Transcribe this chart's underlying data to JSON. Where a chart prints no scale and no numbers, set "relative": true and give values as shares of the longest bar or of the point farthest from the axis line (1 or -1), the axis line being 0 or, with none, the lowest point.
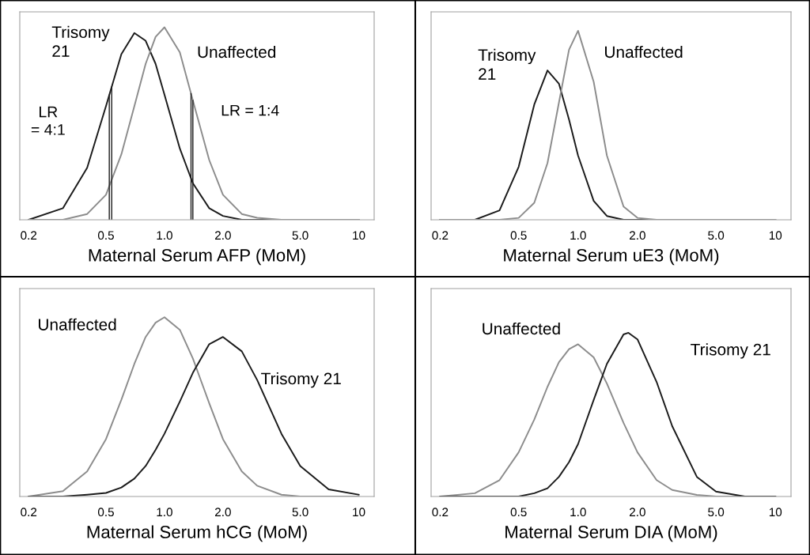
{
  "chart_data": [
    {
      "type": "line",
      "relative": true,
      "xlabel": "Maternal Serum AFP (MoM)",
      "log": "x",
      "xlim": [
        0.18,
        12
      ],
      "xticks": [
        0.2,
        0.5,
        {
          "value": 1,
          "label": "1.0"
        },
        {
          "value": 2,
          "label": "2.0"
        },
        {
          "value": 5,
          "label": "5.0"
        },
        10
      ],
      "tick_labels": "x",
      "grid": false,
      "legend": false,
      "x": [
        0.2,
        0.3,
        0.4,
        0.5,
        0.6,
        0.7,
        0.8,
        0.9,
        1,
        1.2,
        1.4,
        1.7,
        2,
        2.5,
        3,
        4,
        5,
        7,
        10
      ],
      "series": [
        {
          "name": "Trisomy\n21",
          "color": "#1a1a1a",
          "values": [
            0.0,
            0.06,
            0.27,
            0.59,
            0.86,
            0.97,
            0.93,
            0.81,
            0.65,
            0.37,
            0.19,
            0.06,
            0.02,
            0.0,
            0.0,
            0.0,
            0.0,
            0.0,
            0.0
          ]
        },
        {
          "name": "Unaffected",
          "color": "#8c8c8c",
          "values": [
            0.0,
            0.0,
            0.03,
            0.13,
            0.34,
            0.59,
            0.81,
            0.95,
            1.0,
            0.87,
            0.62,
            0.31,
            0.13,
            0.03,
            0.01,
            0.0,
            0.0,
            0.0,
            0.0
          ]
        }
      ],
      "ref_lines": [
        {
          "axis": "x",
          "value": 0.52,
          "color": "#1a1a1a"
        },
        {
          "axis": "x",
          "value": 0.535,
          "color": "#1a1a1a"
        },
        {
          "axis": "x",
          "value": 1.37,
          "color": "#1a1a1a"
        },
        {
          "axis": "x",
          "value": 1.4,
          "color": "#1a1a1a"
        }
      ],
      "annotations": [
        "LR\n= 4:1",
        "LR = 1:4"
      ]
    },
    {
      "type": "line",
      "relative": true,
      "xlabel": "Maternal Serum uE3 (MoM)",
      "log": "x",
      "xlim": [
        0.18,
        12
      ],
      "xticks": [
        0.2,
        0.5,
        {
          "value": 1,
          "label": "1.0"
        },
        {
          "value": 2,
          "label": "2.0"
        },
        {
          "value": 5,
          "label": "5.0"
        },
        10
      ],
      "tick_labels": "x",
      "grid": false,
      "legend": false,
      "x": [
        0.2,
        0.3,
        0.4,
        0.5,
        0.6,
        0.7,
        0.8,
        0.9,
        1,
        1.2,
        1.4,
        1.7,
        2,
        2.5,
        3,
        4,
        5,
        7,
        10
      ],
      "series": [
        {
          "name": "Trisomy\n21",
          "color": "#1a1a1a",
          "values": [
            0.0,
            0.0,
            0.05,
            0.28,
            0.61,
            0.79,
            0.72,
            0.53,
            0.34,
            0.1,
            0.02,
            0.0,
            0.0,
            0.0,
            0.0,
            0.0,
            0.0,
            0.0,
            0.0
          ]
        },
        {
          "name": "Unaffected",
          "color": "#8c8c8c",
          "values": [
            0.0,
            0.0,
            0.0,
            0.01,
            0.09,
            0.3,
            0.62,
            0.9,
            1.0,
            0.73,
            0.34,
            0.07,
            0.01,
            0.0,
            0.0,
            0.0,
            0.0,
            0.0,
            0.0
          ]
        }
      ]
    },
    {
      "type": "line",
      "relative": true,
      "xlabel": "Maternal Serum hCG (MoM)",
      "log": "x",
      "xlim": [
        0.18,
        12
      ],
      "xticks": [
        0.2,
        0.5,
        {
          "value": 1,
          "label": "1.0"
        },
        {
          "value": 2,
          "label": "2.0"
        },
        {
          "value": 5,
          "label": "5.0"
        },
        10
      ],
      "tick_labels": "x",
      "grid": false,
      "legend": false,
      "x": [
        0.2,
        0.3,
        0.4,
        0.5,
        0.6,
        0.7,
        0.8,
        0.9,
        1,
        1.2,
        1.4,
        1.7,
        2,
        2.5,
        3,
        4,
        5,
        7,
        10
      ],
      "series": [
        {
          "name": "Unaffected",
          "color": "#8c8c8c",
          "values": [
            0.0,
            0.03,
            0.14,
            0.32,
            0.54,
            0.74,
            0.89,
            0.97,
            1.0,
            0.93,
            0.77,
            0.52,
            0.32,
            0.14,
            0.06,
            0.01,
            0.0,
            0.0,
            0.0
          ]
        },
        {
          "name": "Trisomy 21",
          "color": "#1a1a1a",
          "values": [
            0.0,
            0.0,
            0.01,
            0.02,
            0.05,
            0.1,
            0.17,
            0.26,
            0.35,
            0.53,
            0.69,
            0.85,
            0.89,
            0.81,
            0.65,
            0.35,
            0.17,
            0.04,
            0.01
          ]
        }
      ]
    },
    {
      "type": "line",
      "relative": true,
      "xlabel": "Maternal Serum DIA (MoM)",
      "log": "x",
      "xlim": [
        0.18,
        12
      ],
      "xticks": [
        0.2,
        0.5,
        {
          "value": 1,
          "label": "1.0"
        },
        {
          "value": 2,
          "label": "2.0"
        },
        {
          "value": 5,
          "label": "5.0"
        },
        10
      ],
      "tick_labels": "x",
      "grid": false,
      "legend": false,
      "x": [
        0.2,
        0.3,
        0.4,
        0.5,
        0.6,
        0.7,
        0.8,
        0.9,
        1,
        1.2,
        1.4,
        1.7,
        2,
        2.5,
        3,
        4,
        5,
        7,
        10
      ],
      "series": [
        {
          "name": "Unaffected",
          "color": "#8c8c8c",
          "values": [
            0.0,
            0.02,
            0.1,
            0.27,
            0.47,
            0.67,
            0.82,
            0.9,
            0.93,
            0.85,
            0.69,
            0.45,
            0.27,
            0.1,
            0.04,
            0.01,
            0.0,
            0.0,
            0.0
          ]
        },
        {
          "name": "Trisomy 21",
          "color": "#1a1a1a",
          "x": [
            0.2,
            0.3,
            0.4,
            0.5,
            0.6,
            0.7,
            0.8,
            0.9,
            1,
            1.2,
            1.4,
            1.7,
            1.8,
            2,
            2.5,
            3,
            4,
            5,
            7,
            10
          ],
          "values": [
            0.0,
            0.0,
            0.0,
            0.0,
            0.02,
            0.05,
            0.12,
            0.21,
            0.32,
            0.59,
            0.81,
            0.99,
            1.0,
            0.96,
            0.7,
            0.43,
            0.12,
            0.03,
            0.0,
            0.0
          ]
        }
      ]
    }
  ]
}
